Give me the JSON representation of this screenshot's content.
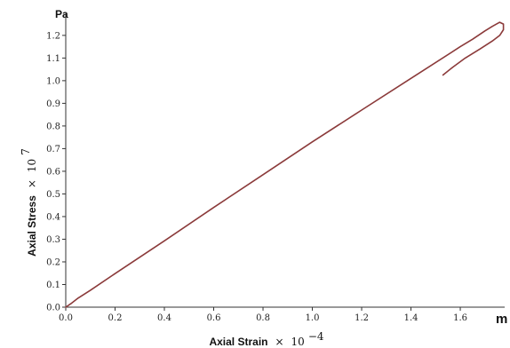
{
  "chart_data": {
    "type": "line",
    "title": "",
    "y_unit": "Pa",
    "x_unit": "m",
    "xlabel": {
      "text": "Axial Strain",
      "times": "×",
      "base": "10",
      "exponent": "−4"
    },
    "ylabel": {
      "text": "Axial Stress",
      "times": "×",
      "base": "10",
      "exponent": "7"
    },
    "xlim": [
      0,
      1.78
    ],
    "ylim": [
      0,
      1.27
    ],
    "x_ticks": [
      0.0,
      0.2,
      0.4,
      0.6,
      0.8,
      1.0,
      1.2,
      1.4,
      1.6
    ],
    "x_tick_labels": [
      "0.0",
      "0.2",
      "0.4",
      "0.6",
      "0.8",
      "1.0",
      "1.2",
      "1.4",
      "1.6"
    ],
    "y_ticks": [
      0.0,
      0.1,
      0.2,
      0.3,
      0.4,
      0.5,
      0.6,
      0.7,
      0.8,
      0.9,
      1.0,
      1.1,
      1.2
    ],
    "y_tick_labels": [
      "0.0",
      "0.1",
      "0.2",
      "0.3",
      "0.4",
      "0.5",
      "0.6",
      "0.7",
      "0.8",
      "0.9",
      "1.0",
      "1.1",
      "1.2"
    ],
    "grid": false,
    "legend": "none",
    "line_color": "#8b3a3a",
    "series": [
      {
        "x": [
          0.0,
          0.02,
          0.05,
          0.1,
          0.2,
          0.4,
          0.6,
          0.8,
          1.0,
          1.2,
          1.4,
          1.6,
          1.65,
          1.7,
          1.73,
          1.76,
          1.775,
          1.775,
          1.76,
          1.73,
          1.68,
          1.62,
          1.57,
          1.53
        ],
        "y": [
          0.0,
          0.015,
          0.04,
          0.075,
          0.148,
          0.293,
          0.44,
          0.585,
          0.73,
          0.87,
          1.01,
          1.15,
          1.183,
          1.22,
          1.24,
          1.258,
          1.25,
          1.225,
          1.2,
          1.175,
          1.14,
          1.1,
          1.06,
          1.025
        ]
      }
    ]
  }
}
